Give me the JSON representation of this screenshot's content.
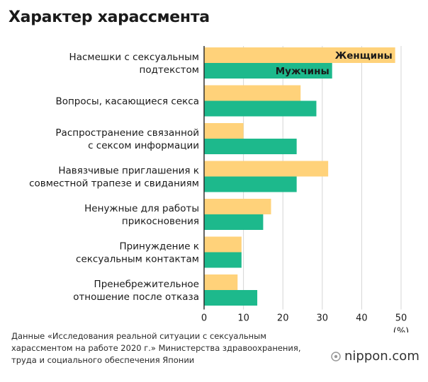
{
  "header": {
    "title": "Характер харассмента"
  },
  "chart_data": {
    "type": "bar",
    "orientation": "horizontal",
    "title": "Характер харассмента",
    "categories": [
      [
        "Насмешки с сексуальным",
        "подтекстом"
      ],
      [
        "Вопросы, касающиеся секса"
      ],
      [
        "Распространение связанной",
        "с сексом информации"
      ],
      [
        "Навязчивые приглашения к",
        "совместной трапезе и свиданиям"
      ],
      [
        "Ненужные для работы",
        "прикосновения"
      ],
      [
        "Принуждение к",
        "сексуальным контактам"
      ],
      [
        "Пренебрежительное",
        "отношение после отказа"
      ]
    ],
    "series": [
      {
        "name": "Женщины",
        "color": "#ffd27a",
        "values": [
          48.5,
          24.5,
          10,
          31.5,
          17,
          9.5,
          8.5
        ]
      },
      {
        "name": "Мужчины",
        "color": "#1db98c",
        "values": [
          32.5,
          28.5,
          23.5,
          23.5,
          15,
          9.5,
          13.5
        ]
      }
    ],
    "xlim": [
      0,
      50
    ],
    "xticks": [
      0,
      10,
      20,
      30,
      40,
      50
    ],
    "xlabel": "(%)",
    "grid": true,
    "legend": "inside first bars"
  },
  "footer": {
    "source": "Данные «Исследования реальной ситуации с сексуальным харассментом на работе 2020 г.» Министерства здравоохранения, труда и социального обеспечения Японии",
    "brand": "nippon.com"
  }
}
